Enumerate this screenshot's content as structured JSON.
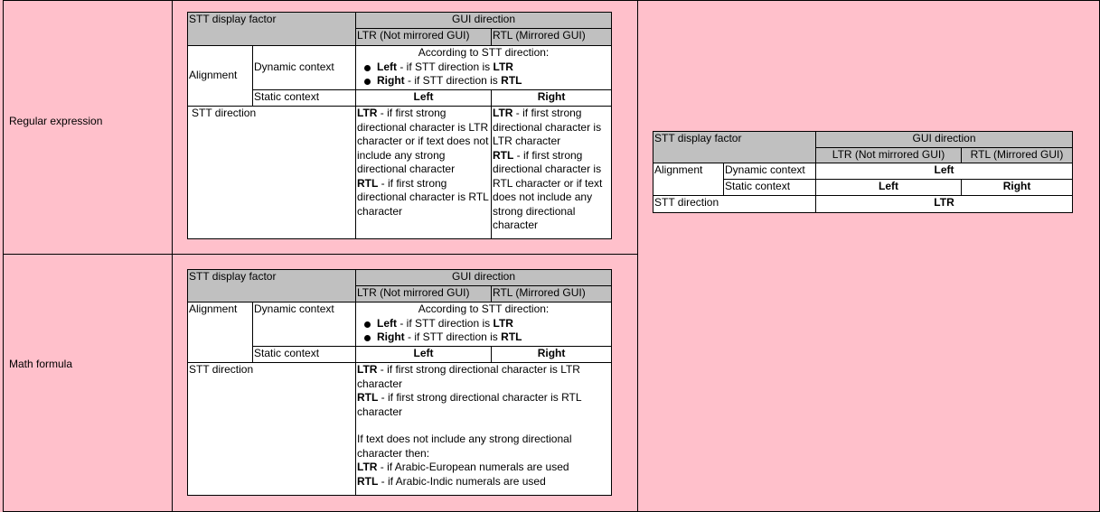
{
  "rows": [
    {
      "label": "Regular expression",
      "table": {
        "factor_header": "STT display factor",
        "gui_header": "GUI direction",
        "ltr_header": "LTR (Not mirrored GUI)",
        "rtl_header": "RTL (Mirrored GUI)",
        "alignment": "Alignment",
        "dynamic_context": "Dynamic context",
        "dynamic_intro": "According to STT direction:",
        "bullets": [
          {
            "b1": "Left",
            "t1": " - if STT direction is ",
            "b2": "LTR"
          },
          {
            "b1": "Right",
            "t1": " - if STT direction is ",
            "b2": "RTL"
          }
        ],
        "static_context": "Static context",
        "static_ltr": "Left",
        "static_rtl": "Right",
        "stt_direction": "STT direction",
        "ltr_col": [
          {
            "b": "LTR",
            "t": " - if first strong directional character is LTR character or if text does not include any strong directional character"
          },
          {
            "b": "RTL",
            "t": " - if first strong directional character is RTL character"
          }
        ],
        "rtl_col": [
          {
            "b": "LTR",
            "t": " - if first strong directional character is LTR character"
          },
          {
            "b": "RTL",
            "t": " - if first strong directional character is RTL character or if text does not include any strong directional character"
          }
        ]
      }
    },
    {
      "label": "Math formula",
      "table": {
        "factor_header": "STT display factor",
        "gui_header": "GUI direction",
        "ltr_header": "LTR (Not mirrored GUI)",
        "rtl_header": "RTL (Mirrored GUI)",
        "alignment": "Alignment",
        "dynamic_context": "Dynamic context",
        "dynamic_intro": "According to STT direction:",
        "bullets": [
          {
            "b1": "Left",
            "t1": " - if STT direction is ",
            "b2": "LTR"
          },
          {
            "b1": "Right",
            "t1": " - if STT direction is ",
            "b2": "RTL"
          }
        ],
        "static_context": "Static context",
        "static_ltr": "Left",
        "static_rtl": "Right",
        "stt_direction": "STT direction",
        "merged": [
          {
            "b": "LTR",
            "t": " - if first strong directional character is LTR character"
          },
          {
            "b": "RTL",
            "t": " - if first strong directional character is RTL character"
          }
        ],
        "merged_note": "If text does not include any strong directional character then:",
        "merged_numerals": [
          {
            "b": "LTR",
            "t": " - if Arabic-European numerals are used"
          },
          {
            "b": "RTL",
            "t": " - if Arabic-Indic numerals are used"
          }
        ]
      }
    }
  ],
  "right_table": {
    "factor_header": "STT display factor",
    "gui_header": "GUI direction",
    "ltr_header": "LTR (Not mirrored GUI)",
    "rtl_header": "RTL (Mirrored GUI)",
    "alignment": "Alignment",
    "dynamic_context": "Dynamic context",
    "dynamic_value": "Left",
    "static_context": "Static context",
    "static_ltr": "Left",
    "static_rtl": "Right",
    "stt_direction": "STT direction",
    "stt_value": "LTR"
  },
  "colors": {
    "background": "#ffc0cb",
    "header": "#c0c0c0"
  }
}
